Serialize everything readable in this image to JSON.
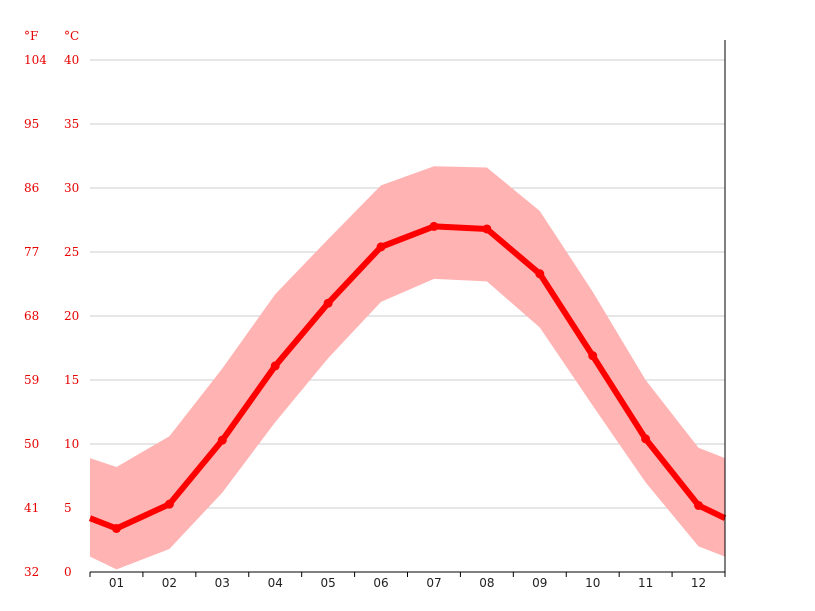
{
  "chart_data": {
    "type": "line",
    "title": "",
    "xlabel": "",
    "ylabel": "",
    "unit_left": "°F",
    "unit_right": "°C",
    "categories": [
      "01",
      "02",
      "03",
      "04",
      "05",
      "06",
      "07",
      "08",
      "09",
      "10",
      "11",
      "12"
    ],
    "ylim": [
      0,
      40
    ],
    "y_ticks_c": [
      "0",
      "5",
      "10",
      "15",
      "20",
      "25",
      "30",
      "35",
      "40"
    ],
    "y_ticks_f": [
      "32",
      "41",
      "50",
      "59",
      "68",
      "77",
      "86",
      "95",
      "104"
    ],
    "grid": true,
    "series": [
      {
        "kind": "mean",
        "values": [
          3.4,
          5.3,
          10.3,
          16.1,
          21.0,
          25.4,
          27.0,
          26.8,
          23.3,
          16.9,
          10.4,
          5.2
        ],
        "edge_start": 4.2,
        "edge_end": 4.2
      },
      {
        "kind": "max",
        "values": [
          8.2,
          10.6,
          15.9,
          21.7,
          26.0,
          30.2,
          31.7,
          31.6,
          28.2,
          21.9,
          15.0,
          9.7
        ],
        "edge_start": 8.9,
        "edge_end": 8.9
      },
      {
        "kind": "min",
        "values": [
          0.2,
          1.8,
          6.2,
          11.7,
          16.7,
          21.1,
          22.9,
          22.7,
          19.1,
          13.0,
          7.0,
          2.0
        ],
        "edge_start": 1.2,
        "edge_end": 1.2
      }
    ],
    "colors": {
      "line": "#ff0000",
      "band": "#ffb3b3",
      "grid": "#cccccc",
      "axis": "#000000",
      "tick_label": "#e60000"
    }
  }
}
